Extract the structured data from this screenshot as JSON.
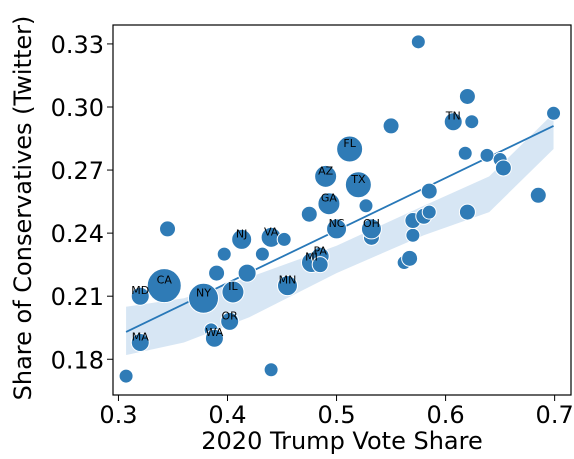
{
  "chart_data": {
    "type": "scatter",
    "xlabel": "2020 Trump Vote Share",
    "ylabel": "Share of Conservatives (Twitter)",
    "xlim": [
      0.295,
      0.715
    ],
    "ylim": [
      0.163,
      0.339
    ],
    "xticks": [
      "0.3",
      "0.4",
      "0.5",
      "0.6",
      "0.7"
    ],
    "xtick_values": [
      0.3,
      0.4,
      0.5,
      0.6,
      0.7
    ],
    "yticks": [
      "0.18",
      "0.21",
      "0.24",
      "0.27",
      "0.30",
      "0.33"
    ],
    "ytick_values": [
      0.18,
      0.21,
      0.24,
      0.27,
      0.3,
      0.33
    ],
    "grid": false,
    "point_color": "#2f7bb6",
    "fit_line": {
      "x": [
        0.307,
        0.699
      ],
      "y": [
        0.193,
        0.291
      ],
      "color": "#2878b8"
    },
    "confidence_band": {
      "x": [
        0.307,
        0.36,
        0.42,
        0.5,
        0.58,
        0.64,
        0.699
      ],
      "lower": [
        0.182,
        0.188,
        0.2,
        0.221,
        0.239,
        0.25,
        0.28
      ],
      "upper": [
        0.205,
        0.209,
        0.219,
        0.234,
        0.253,
        0.267,
        0.297
      ],
      "color": "#c6dbef"
    },
    "points": [
      {
        "x": 0.307,
        "y": 0.172,
        "s": 7,
        "label": ""
      },
      {
        "x": 0.32,
        "y": 0.21,
        "s": 9,
        "label": "MD"
      },
      {
        "x": 0.32,
        "y": 0.188,
        "s": 9,
        "label": "MA"
      },
      {
        "x": 0.342,
        "y": 0.215,
        "s": 17,
        "label": "CA"
      },
      {
        "x": 0.345,
        "y": 0.242,
        "s": 8,
        "label": ""
      },
      {
        "x": 0.378,
        "y": 0.209,
        "s": 15,
        "label": "NY"
      },
      {
        "x": 0.385,
        "y": 0.194,
        "s": 7,
        "label": ""
      },
      {
        "x": 0.388,
        "y": 0.19,
        "s": 9,
        "label": "WA"
      },
      {
        "x": 0.39,
        "y": 0.221,
        "s": 8,
        "label": ""
      },
      {
        "x": 0.397,
        "y": 0.23,
        "s": 7,
        "label": ""
      },
      {
        "x": 0.402,
        "y": 0.198,
        "s": 9,
        "label": "OR"
      },
      {
        "x": 0.405,
        "y": 0.212,
        "s": 11,
        "label": "IL"
      },
      {
        "x": 0.413,
        "y": 0.237,
        "s": 10,
        "label": "NJ"
      },
      {
        "x": 0.418,
        "y": 0.221,
        "s": 9,
        "label": ""
      },
      {
        "x": 0.432,
        "y": 0.23,
        "s": 7,
        "label": ""
      },
      {
        "x": 0.44,
        "y": 0.175,
        "s": 7,
        "label": ""
      },
      {
        "x": 0.44,
        "y": 0.238,
        "s": 10,
        "label": "VA"
      },
      {
        "x": 0.452,
        "y": 0.237,
        "s": 7,
        "label": ""
      },
      {
        "x": 0.455,
        "y": 0.215,
        "s": 10,
        "label": "MN"
      },
      {
        "x": 0.475,
        "y": 0.249,
        "s": 8,
        "label": ""
      },
      {
        "x": 0.477,
        "y": 0.226,
        "s": 10,
        "label": "MI"
      },
      {
        "x": 0.485,
        "y": 0.229,
        "s": 9,
        "label": "PA"
      },
      {
        "x": 0.485,
        "y": 0.225,
        "s": 8,
        "label": ""
      },
      {
        "x": 0.49,
        "y": 0.267,
        "s": 11,
        "label": "AZ"
      },
      {
        "x": 0.493,
        "y": 0.254,
        "s": 11,
        "label": "GA"
      },
      {
        "x": 0.5,
        "y": 0.242,
        "s": 10,
        "label": "NC"
      },
      {
        "x": 0.512,
        "y": 0.28,
        "s": 13,
        "label": "FL"
      },
      {
        "x": 0.52,
        "y": 0.263,
        "s": 13,
        "label": "TX"
      },
      {
        "x": 0.527,
        "y": 0.253,
        "s": 7,
        "label": ""
      },
      {
        "x": 0.532,
        "y": 0.238,
        "s": 8,
        "label": ""
      },
      {
        "x": 0.532,
        "y": 0.242,
        "s": 10,
        "label": "OH"
      },
      {
        "x": 0.55,
        "y": 0.291,
        "s": 8,
        "label": ""
      },
      {
        "x": 0.562,
        "y": 0.226,
        "s": 7,
        "label": ""
      },
      {
        "x": 0.567,
        "y": 0.228,
        "s": 8,
        "label": ""
      },
      {
        "x": 0.57,
        "y": 0.239,
        "s": 7,
        "label": ""
      },
      {
        "x": 0.57,
        "y": 0.246,
        "s": 8,
        "label": ""
      },
      {
        "x": 0.575,
        "y": 0.331,
        "s": 7,
        "label": ""
      },
      {
        "x": 0.58,
        "y": 0.248,
        "s": 8,
        "label": ""
      },
      {
        "x": 0.585,
        "y": 0.25,
        "s": 7,
        "label": ""
      },
      {
        "x": 0.585,
        "y": 0.26,
        "s": 8,
        "label": ""
      },
      {
        "x": 0.607,
        "y": 0.293,
        "s": 9,
        "label": "TN"
      },
      {
        "x": 0.618,
        "y": 0.278,
        "s": 7,
        "label": ""
      },
      {
        "x": 0.62,
        "y": 0.305,
        "s": 8,
        "label": ""
      },
      {
        "x": 0.62,
        "y": 0.25,
        "s": 8,
        "label": ""
      },
      {
        "x": 0.624,
        "y": 0.293,
        "s": 7,
        "label": ""
      },
      {
        "x": 0.638,
        "y": 0.277,
        "s": 7,
        "label": ""
      },
      {
        "x": 0.65,
        "y": 0.275,
        "s": 7,
        "label": ""
      },
      {
        "x": 0.653,
        "y": 0.271,
        "s": 8,
        "label": ""
      },
      {
        "x": 0.685,
        "y": 0.258,
        "s": 8,
        "label": ""
      },
      {
        "x": 0.699,
        "y": 0.297,
        "s": 7,
        "label": ""
      }
    ]
  }
}
